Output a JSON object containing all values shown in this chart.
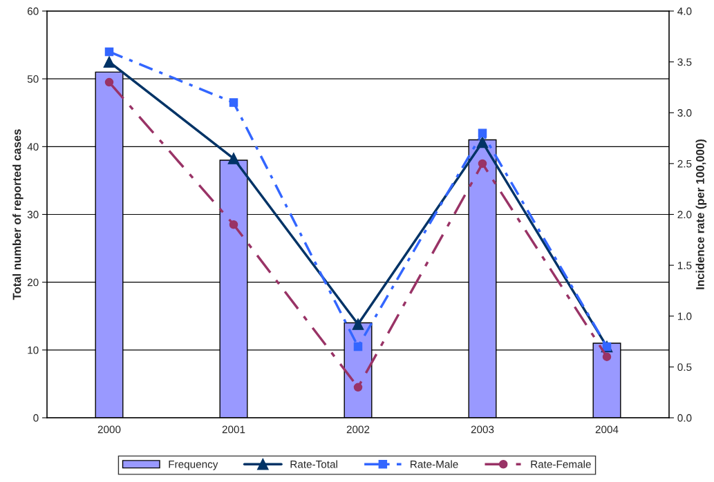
{
  "chart_data": {
    "type": "bar",
    "categories": [
      "2000",
      "2001",
      "2002",
      "2003",
      "2004"
    ],
    "ylabel": "Total number of reported cases",
    "y2label": "Incidence rate (per 100,000)",
    "ylim": [
      0,
      60
    ],
    "yticks": [
      0,
      10,
      20,
      30,
      40,
      50,
      60
    ],
    "y2lim": [
      0,
      4.0
    ],
    "y2ticks": [
      {
        "value": 0,
        "label": "0.0"
      },
      {
        "value": 0.5,
        "label": "0.5"
      },
      {
        "value": 1.0,
        "label": "1.0"
      },
      {
        "value": 1.5,
        "label": "1.5"
      },
      {
        "value": 2.0,
        "label": "2.0"
      },
      {
        "value": 2.5,
        "label": "2.5"
      },
      {
        "value": 3.0,
        "label": "3.0"
      },
      {
        "value": 3.5,
        "label": "3.5"
      },
      {
        "value": 4.0,
        "label": "4.0"
      }
    ],
    "grid": "y",
    "legend": "bottom",
    "series": [
      {
        "name": "Frequency",
        "color": "#9999ff",
        "values": [
          51,
          38,
          14,
          41,
          11
        ]
      },
      {
        "name": "Rate-Total",
        "type": "line",
        "axis": "y2",
        "color": "#003366",
        "marker": "triangle",
        "line_style": "solid",
        "values": [
          3.5,
          2.55,
          0.92,
          2.71,
          0.7
        ]
      },
      {
        "name": "Rate-Male",
        "type": "line",
        "axis": "y2",
        "color": "#3366ff",
        "marker": "square",
        "line_style": "dashed",
        "values": [
          3.6,
          3.1,
          0.7,
          2.8,
          0.7
        ]
      },
      {
        "name": "Rate-Female",
        "type": "line",
        "axis": "y2",
        "color": "#993366",
        "marker": "circle",
        "line_style": "dotted",
        "values": [
          3.3,
          1.9,
          0.3,
          2.5,
          0.6
        ]
      }
    ]
  }
}
